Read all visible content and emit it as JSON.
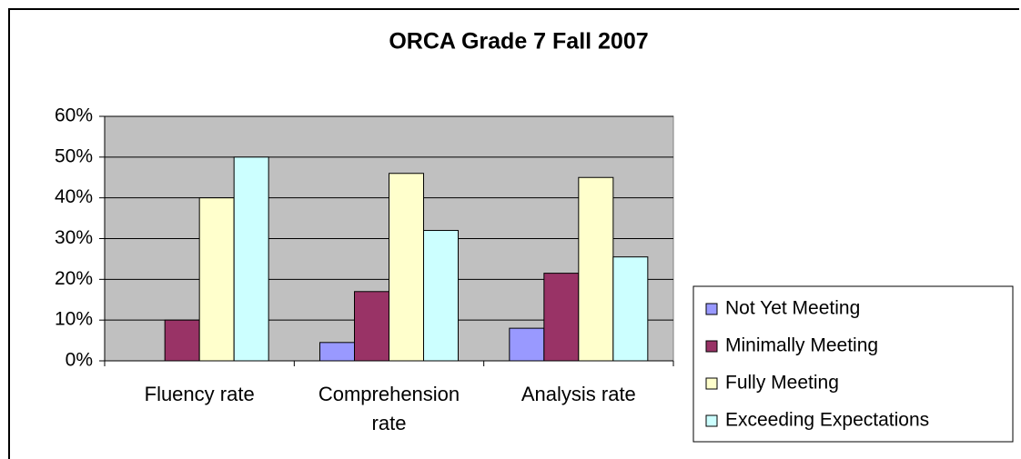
{
  "chart_data": {
    "type": "bar",
    "title": "ORCA Grade 7 Fall 2007",
    "categories": [
      "Fluency rate",
      "Comprehension rate",
      "Analysis rate"
    ],
    "series": [
      {
        "name": "Not Yet Meeting",
        "color": "#9999ff",
        "values": [
          0,
          4.5,
          8
        ]
      },
      {
        "name": "Minimally Meeting",
        "color": "#993366",
        "values": [
          10,
          17,
          21.5
        ]
      },
      {
        "name": "Fully Meeting",
        "color": "#ffffcc",
        "values": [
          40,
          46,
          45
        ]
      },
      {
        "name": "Exceeding Expectations",
        "color": "#ccffff",
        "values": [
          50,
          32,
          25.5
        ]
      }
    ],
    "ylim": [
      0,
      60
    ],
    "yticks": [
      {
        "value": 0,
        "label": "0%"
      },
      {
        "value": 10,
        "label": "10%"
      },
      {
        "value": 20,
        "label": "20%"
      },
      {
        "value": 30,
        "label": "30%"
      },
      {
        "value": 40,
        "label": "40%"
      },
      {
        "value": 50,
        "label": "50%"
      },
      {
        "value": 60,
        "label": "60%"
      }
    ],
    "grid": true,
    "legend": "right"
  }
}
